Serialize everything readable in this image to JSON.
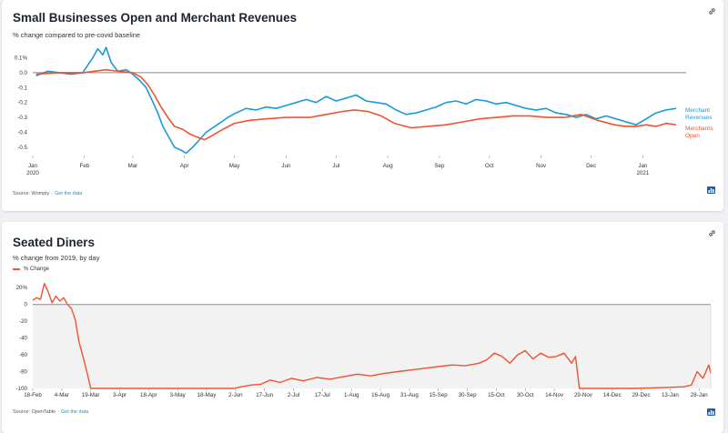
{
  "cards": [
    {
      "title": "Small Businesses Open and Merchant Revenues",
      "subtitle": "% change compared to pre-covid baseline",
      "source_prefix": "Source: Womply",
      "source_link": "Get the data"
    },
    {
      "title": "Seated Diners",
      "subtitle": "% change from 2019, by day",
      "source_prefix": "Source: OpenTable",
      "source_link": "Get the data"
    }
  ],
  "chart_data": [
    {
      "type": "line",
      "title": "Small Businesses Open and Merchant Revenues",
      "subtitle": "% change compared to pre-covid baseline",
      "ylim": [
        -0.55,
        0.14
      ],
      "y_ticks": [
        "0.1%",
        "0.0",
        "-0.1",
        "-0.2",
        "-0.3",
        "-0.4",
        "-0.5"
      ],
      "y_tick_values": [
        0.1,
        0.0,
        -0.1,
        -0.2,
        -0.3,
        -0.4,
        -0.5
      ],
      "x_ticks": [
        "Jan",
        "Feb",
        "Mar",
        "Apr",
        "May",
        "Jun",
        "Jul",
        "Aug",
        "Sep",
        "Oct",
        "Nov",
        "Dec",
        "Jan"
      ],
      "x_tick_sub": {
        "0": "2020",
        "12": "2021"
      },
      "baseline": 0,
      "grid": false,
      "legend": "inline-right",
      "series": [
        {
          "name": "Merchant Revenues",
          "label_lines": [
            "Merchant",
            "Revenues"
          ],
          "color": "#1a9ad6",
          "x": [
            "2020-01-03",
            "2020-01-10",
            "2020-01-17",
            "2020-01-24",
            "2020-01-31",
            "2020-02-03",
            "2020-02-06",
            "2020-02-09",
            "2020-02-12",
            "2020-02-14",
            "2020-02-17",
            "2020-02-21",
            "2020-02-26",
            "2020-03-01",
            "2020-03-05",
            "2020-03-09",
            "2020-03-12",
            "2020-03-16",
            "2020-03-19",
            "2020-03-23",
            "2020-03-26",
            "2020-03-30",
            "2020-04-02",
            "2020-04-06",
            "2020-04-10",
            "2020-04-14",
            "2020-04-18",
            "2020-04-22",
            "2020-04-27",
            "2020-05-02",
            "2020-05-08",
            "2020-05-14",
            "2020-05-20",
            "2020-05-26",
            "2020-06-01",
            "2020-06-07",
            "2020-06-13",
            "2020-06-19",
            "2020-06-25",
            "2020-07-01",
            "2020-07-07",
            "2020-07-13",
            "2020-07-19",
            "2020-07-25",
            "2020-07-31",
            "2020-08-06",
            "2020-08-12",
            "2020-08-18",
            "2020-08-24",
            "2020-08-30",
            "2020-09-05",
            "2020-09-11",
            "2020-09-17",
            "2020-09-23",
            "2020-09-29",
            "2020-10-05",
            "2020-10-11",
            "2020-10-17",
            "2020-10-23",
            "2020-10-29",
            "2020-11-04",
            "2020-11-10",
            "2020-11-16",
            "2020-11-22",
            "2020-11-28",
            "2020-12-04",
            "2020-12-10",
            "2020-12-16",
            "2020-12-22",
            "2020-12-28",
            "2021-01-03",
            "2021-01-09",
            "2021-01-15",
            "2021-01-21"
          ],
          "values": [
            -0.02,
            0.01,
            0.0,
            -0.01,
            0.0,
            0.05,
            0.1,
            0.16,
            0.12,
            0.17,
            0.07,
            0.01,
            0.02,
            -0.01,
            -0.05,
            -0.1,
            -0.17,
            -0.27,
            -0.36,
            -0.44,
            -0.5,
            -0.52,
            -0.54,
            -0.5,
            -0.45,
            -0.4,
            -0.37,
            -0.34,
            -0.3,
            -0.27,
            -0.24,
            -0.25,
            -0.23,
            -0.24,
            -0.22,
            -0.2,
            -0.18,
            -0.2,
            -0.16,
            -0.19,
            -0.17,
            -0.15,
            -0.19,
            -0.2,
            -0.21,
            -0.25,
            -0.28,
            -0.27,
            -0.25,
            -0.23,
            -0.2,
            -0.19,
            -0.21,
            -0.18,
            -0.19,
            -0.21,
            -0.2,
            -0.22,
            -0.24,
            -0.25,
            -0.24,
            -0.27,
            -0.28,
            -0.3,
            -0.28,
            -0.31,
            -0.29,
            -0.31,
            -0.33,
            -0.35,
            -0.31,
            -0.27,
            -0.25,
            -0.24
          ]
        },
        {
          "name": "Merchants Open",
          "label_lines": [
            "Merchants",
            "Open"
          ],
          "color": "#f0532f",
          "x": [
            "2020-01-03",
            "2020-01-17",
            "2020-01-31",
            "2020-02-07",
            "2020-02-14",
            "2020-02-21",
            "2020-03-01",
            "2020-03-06",
            "2020-03-10",
            "2020-03-14",
            "2020-03-18",
            "2020-03-22",
            "2020-03-26",
            "2020-03-31",
            "2020-04-04",
            "2020-04-08",
            "2020-04-13",
            "2020-04-18",
            "2020-04-24",
            "2020-05-01",
            "2020-05-10",
            "2020-05-20",
            "2020-06-01",
            "2020-06-15",
            "2020-06-25",
            "2020-07-05",
            "2020-07-12",
            "2020-07-20",
            "2020-07-28",
            "2020-08-05",
            "2020-08-15",
            "2020-08-25",
            "2020-09-05",
            "2020-09-15",
            "2020-09-25",
            "2020-10-05",
            "2020-10-15",
            "2020-10-25",
            "2020-11-05",
            "2020-11-15",
            "2020-11-25",
            "2020-12-05",
            "2020-12-15",
            "2020-12-22",
            "2020-12-28",
            "2021-01-03",
            "2021-01-09",
            "2021-01-15",
            "2021-01-21"
          ],
          "values": [
            -0.01,
            0.0,
            0.0,
            0.01,
            0.02,
            0.01,
            0.0,
            -0.03,
            -0.08,
            -0.15,
            -0.23,
            -0.3,
            -0.36,
            -0.38,
            -0.41,
            -0.43,
            -0.45,
            -0.42,
            -0.38,
            -0.34,
            -0.32,
            -0.31,
            -0.3,
            -0.3,
            -0.28,
            -0.26,
            -0.25,
            -0.26,
            -0.29,
            -0.34,
            -0.37,
            -0.36,
            -0.35,
            -0.33,
            -0.31,
            -0.3,
            -0.29,
            -0.29,
            -0.3,
            -0.3,
            -0.28,
            -0.32,
            -0.35,
            -0.36,
            -0.36,
            -0.35,
            -0.36,
            -0.34,
            -0.35
          ]
        }
      ]
    },
    {
      "type": "area",
      "title": "Seated Diners",
      "subtitle": "% change from 2019, by day",
      "ylim": [
        -100,
        30
      ],
      "y_ticks": [
        "20%",
        "0",
        "-20",
        "-40",
        "-60",
        "-80",
        "-100"
      ],
      "y_tick_values": [
        20,
        0,
        -20,
        -40,
        -60,
        -80,
        -100
      ],
      "x_ticks": [
        "18-Feb",
        "4-Mar",
        "19-Mar",
        "3-Apr",
        "18-Apr",
        "3-May",
        "18-May",
        "2-Jun",
        "17-Jun",
        "2-Jul",
        "17-Jul",
        "1-Aug",
        "16-Aug",
        "31-Aug",
        "15-Sep",
        "30-Sep",
        "15-Oct",
        "30-Oct",
        "14-Nov",
        "29-Nov",
        "14-Dec",
        "29-Dec",
        "13-Jan",
        "28-Jan"
      ],
      "baseline": 0,
      "grid": false,
      "legend": "top-left",
      "series": [
        {
          "name": "% Change",
          "color": "#f0532f",
          "x": [
            "2020-02-18",
            "2020-02-20",
            "2020-02-22",
            "2020-02-24",
            "2020-02-26",
            "2020-02-28",
            "2020-03-01",
            "2020-03-03",
            "2020-03-05",
            "2020-03-07",
            "2020-03-09",
            "2020-03-11",
            "2020-03-13",
            "2020-03-15",
            "2020-03-17",
            "2020-03-19",
            "2020-04-03",
            "2020-05-03",
            "2020-06-01",
            "2020-06-05",
            "2020-06-10",
            "2020-06-15",
            "2020-06-20",
            "2020-06-25",
            "2020-07-01",
            "2020-07-07",
            "2020-07-14",
            "2020-07-21",
            "2020-07-28",
            "2020-08-04",
            "2020-08-11",
            "2020-08-18",
            "2020-08-25",
            "2020-09-01",
            "2020-09-08",
            "2020-09-15",
            "2020-09-22",
            "2020-09-29",
            "2020-10-06",
            "2020-10-10",
            "2020-10-14",
            "2020-10-18",
            "2020-10-22",
            "2020-10-26",
            "2020-10-30",
            "2020-11-03",
            "2020-11-07",
            "2020-11-11",
            "2020-11-15",
            "2020-11-19",
            "2020-11-23",
            "2020-11-25",
            "2020-11-27",
            "2020-12-10",
            "2020-12-25",
            "2021-01-10",
            "2021-01-20",
            "2021-01-24",
            "2021-01-27",
            "2021-01-30",
            "2021-02-02",
            "2021-02-03"
          ],
          "values": [
            5,
            8,
            6,
            25,
            15,
            2,
            10,
            4,
            8,
            0,
            -5,
            -18,
            -45,
            -62,
            -80,
            -100,
            -100,
            -100,
            -100,
            -98,
            -96,
            -95,
            -90,
            -93,
            -88,
            -91,
            -87,
            -89,
            -86,
            -83,
            -85,
            -82,
            -80,
            -78,
            -76,
            -74,
            -72,
            -73,
            -70,
            -66,
            -58,
            -62,
            -70,
            -60,
            -55,
            -65,
            -58,
            -63,
            -62,
            -58,
            -70,
            -62,
            -100,
            -100,
            -100,
            -99,
            -98,
            -96,
            -80,
            -88,
            -72,
            -82
          ]
        }
      ]
    }
  ]
}
